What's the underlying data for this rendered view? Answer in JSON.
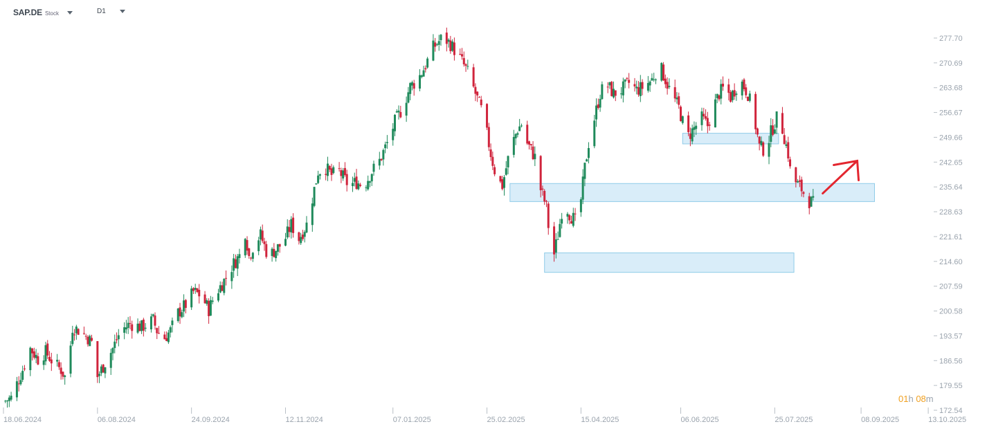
{
  "header": {
    "symbol": "SAP.DE",
    "symbol_type": "Stock",
    "timeframe": "D1"
  },
  "countdown": {
    "hours": "01",
    "hour_unit": "h",
    "minutes": "08",
    "minute_unit": "m"
  },
  "colors": {
    "up": "#1f8a5b",
    "down": "#d0243c",
    "zone_fill": "#cfe8f7",
    "zone_stroke": "#8fcbe8",
    "arrow": "#e3262f",
    "countdown": "#f0a020"
  },
  "chart_data": {
    "type": "candlestick",
    "instrument": "SAP.DE",
    "timeframe": "D1",
    "y_ticks": [
      "277.70",
      "270.69",
      "263.68",
      "256.67",
      "249.66",
      "242.65",
      "235.64",
      "228.63",
      "221.61",
      "214.60",
      "207.59",
      "200.58",
      "193.57",
      "186.56",
      "179.55",
      "172.54"
    ],
    "ylim": [
      172.54,
      280.0
    ],
    "x_ticks": [
      "18.06.2024",
      "06.08.2024",
      "24.09.2024",
      "12.11.2024",
      "07.01.2025",
      "25.02.2025",
      "15.04.2025",
      "06.06.2025",
      "25.07.2025",
      "08.09.2025",
      "13.10.2025"
    ],
    "x_tick_days": [
      0,
      49,
      98,
      147,
      203,
      252,
      301,
      353,
      402,
      447,
      482
    ],
    "price_path": [
      [
        0,
        175
      ],
      [
        4,
        176
      ],
      [
        10,
        184
      ],
      [
        14,
        190
      ],
      [
        18,
        187
      ],
      [
        22,
        189
      ],
      [
        26,
        186
      ],
      [
        30,
        184
      ],
      [
        33,
        181
      ],
      [
        36,
        196
      ],
      [
        40,
        195
      ],
      [
        44,
        193
      ],
      [
        47,
        191
      ],
      [
        49,
        182
      ],
      [
        53,
        186
      ],
      [
        57,
        190
      ],
      [
        61,
        195
      ],
      [
        66,
        197
      ],
      [
        72,
        196
      ],
      [
        78,
        198
      ],
      [
        80,
        195
      ],
      [
        84,
        193
      ],
      [
        87,
        195
      ],
      [
        91,
        200
      ],
      [
        96,
        203
      ],
      [
        99,
        206
      ],
      [
        103,
        205
      ],
      [
        107,
        201
      ],
      [
        110,
        205
      ],
      [
        116,
        210
      ],
      [
        120,
        214
      ],
      [
        124,
        217
      ],
      [
        126,
        223
      ],
      [
        128,
        216
      ],
      [
        131,
        220
      ],
      [
        134,
        222
      ],
      [
        138,
        216
      ],
      [
        142,
        218
      ],
      [
        146,
        220
      ],
      [
        150,
        225
      ],
      [
        154,
        221
      ],
      [
        158,
        225
      ],
      [
        164,
        240
      ],
      [
        168,
        241
      ],
      [
        171,
        239
      ],
      [
        175,
        240
      ],
      [
        180,
        236
      ],
      [
        184,
        237
      ],
      [
        188,
        236
      ],
      [
        192,
        240
      ],
      [
        196,
        243
      ],
      [
        200,
        248
      ],
      [
        204,
        254
      ],
      [
        208,
        258
      ],
      [
        212,
        264
      ],
      [
        216,
        266
      ],
      [
        220,
        270
      ],
      [
        224,
        275
      ],
      [
        229,
        278
      ],
      [
        233,
        276
      ],
      [
        238,
        272
      ],
      [
        242,
        268
      ],
      [
        246,
        262
      ],
      [
        250,
        256
      ],
      [
        254,
        245
      ],
      [
        257,
        238
      ],
      [
        260,
        236
      ],
      [
        264,
        246
      ],
      [
        268,
        252
      ],
      [
        271,
        254
      ],
      [
        273,
        248
      ],
      [
        277,
        244
      ],
      [
        280,
        235
      ],
      [
        283,
        230
      ],
      [
        286,
        214
      ],
      [
        289,
        222
      ],
      [
        292,
        232
      ],
      [
        295,
        228
      ],
      [
        298,
        226
      ],
      [
        301,
        232
      ],
      [
        303,
        241
      ],
      [
        305,
        248
      ],
      [
        308,
        255
      ],
      [
        311,
        262
      ],
      [
        314,
        265
      ],
      [
        318,
        262
      ],
      [
        322,
        263
      ],
      [
        326,
        265
      ],
      [
        330,
        263
      ],
      [
        334,
        264
      ],
      [
        338,
        266
      ],
      [
        342,
        270
      ],
      [
        345,
        266
      ],
      [
        348,
        262
      ],
      [
        352,
        258
      ],
      [
        354,
        254
      ],
      [
        357,
        250
      ],
      [
        361,
        253
      ],
      [
        364,
        255
      ],
      [
        367,
        253
      ],
      [
        370,
        258
      ],
      [
        373,
        262
      ],
      [
        376,
        264
      ],
      [
        379,
        261
      ],
      [
        382,
        264
      ],
      [
        385,
        265
      ],
      [
        388,
        262
      ],
      [
        391,
        256
      ],
      [
        394,
        247
      ],
      [
        397,
        246
      ],
      [
        400,
        251
      ],
      [
        403,
        255
      ],
      [
        406,
        252
      ],
      [
        409,
        245
      ],
      [
        411,
        236
      ],
      [
        413,
        237
      ],
      [
        416,
        235
      ],
      [
        419,
        232
      ],
      [
        422,
        231
      ]
    ],
    "support_zones": [
      {
        "from_day": 264,
        "to_day": 454,
        "low": 231.5,
        "high": 236.6
      },
      {
        "from_day": 282,
        "to_day": 412,
        "low": 211.5,
        "high": 217.0
      },
      {
        "from_day": 354,
        "to_day": 404,
        "low": 247.8,
        "high": 250.8
      }
    ],
    "arrow": {
      "from_day": 427,
      "from_price": 233.8,
      "to_day": 445,
      "to_price": 243.0
    },
    "grid": false,
    "legend": "none"
  }
}
